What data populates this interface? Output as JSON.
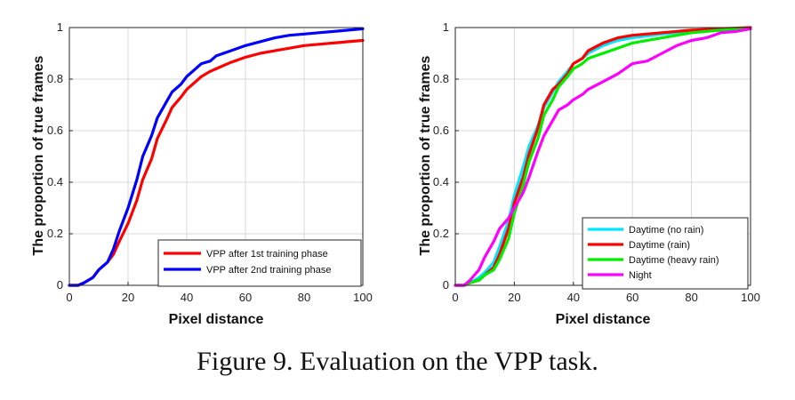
{
  "caption": "Figure 9. Evaluation on the VPP task.",
  "chart_data": [
    {
      "type": "line",
      "xlabel": "Pixel distance",
      "ylabel": "The proportion of true frames",
      "xlim": [
        0,
        100
      ],
      "ylim": [
        0,
        1
      ],
      "xticks": [
        0,
        20,
        40,
        60,
        80,
        100
      ],
      "yticks": [
        0,
        0.2,
        0.4,
        0.6,
        0.8,
        1
      ],
      "ytick_labels": [
        "0",
        "0.2",
        "0.4",
        "0.6",
        "0.8",
        "1"
      ],
      "grid": true,
      "legend_position": "bottom-right",
      "series": [
        {
          "name": "VPP after 1st training phase",
          "color": "#ff0000",
          "x": [
            0,
            3,
            5,
            8,
            10,
            13,
            15,
            17,
            20,
            23,
            25,
            28,
            30,
            33,
            35,
            38,
            40,
            43,
            45,
            48,
            50,
            55,
            60,
            65,
            70,
            75,
            80,
            85,
            90,
            95,
            100
          ],
          "y": [
            0,
            0,
            0.01,
            0.03,
            0.06,
            0.09,
            0.12,
            0.17,
            0.24,
            0.33,
            0.41,
            0.49,
            0.57,
            0.64,
            0.69,
            0.73,
            0.76,
            0.79,
            0.81,
            0.83,
            0.84,
            0.865,
            0.885,
            0.9,
            0.91,
            0.92,
            0.93,
            0.935,
            0.94,
            0.945,
            0.95
          ]
        },
        {
          "name": "VPP after 2nd training phase",
          "color": "#0000ff",
          "x": [
            0,
            3,
            5,
            8,
            10,
            13,
            15,
            17,
            20,
            23,
            25,
            28,
            30,
            33,
            35,
            38,
            40,
            43,
            45,
            48,
            50,
            55,
            60,
            65,
            70,
            75,
            80,
            85,
            90,
            95,
            100
          ],
          "y": [
            0,
            0,
            0.01,
            0.03,
            0.06,
            0.09,
            0.14,
            0.21,
            0.3,
            0.41,
            0.5,
            0.58,
            0.65,
            0.71,
            0.75,
            0.78,
            0.81,
            0.84,
            0.86,
            0.87,
            0.89,
            0.91,
            0.93,
            0.945,
            0.96,
            0.97,
            0.975,
            0.98,
            0.985,
            0.99,
            0.995
          ]
        }
      ]
    },
    {
      "type": "line",
      "xlabel": "Pixel distance",
      "ylabel": "The proportion of true frames",
      "xlim": [
        0,
        100
      ],
      "ylim": [
        0,
        1
      ],
      "xticks": [
        0,
        20,
        40,
        60,
        80,
        100
      ],
      "yticks": [
        0,
        0.2,
        0.4,
        0.6,
        0.8,
        1
      ],
      "ytick_labels": [
        "0",
        "0.2",
        "0.4",
        "0.6",
        "0.8",
        "1"
      ],
      "grid": true,
      "legend_position": "bottom-right",
      "series": [
        {
          "name": "Daytime (no rain)",
          "color": "#00e5ff",
          "x": [
            0,
            3,
            5,
            8,
            10,
            13,
            15,
            18,
            20,
            23,
            25,
            28,
            30,
            33,
            35,
            38,
            40,
            43,
            45,
            50,
            55,
            60,
            70,
            80,
            90,
            100
          ],
          "y": [
            0,
            0,
            0.01,
            0.03,
            0.05,
            0.09,
            0.15,
            0.25,
            0.35,
            0.46,
            0.54,
            0.62,
            0.69,
            0.75,
            0.79,
            0.83,
            0.86,
            0.88,
            0.9,
            0.93,
            0.95,
            0.96,
            0.975,
            0.985,
            0.99,
            1.0
          ]
        },
        {
          "name": "Daytime (rain)",
          "color": "#ff0000",
          "x": [
            0,
            3,
            5,
            8,
            10,
            13,
            15,
            18,
            20,
            23,
            25,
            28,
            30,
            33,
            35,
            38,
            40,
            43,
            45,
            50,
            55,
            60,
            70,
            80,
            90,
            100
          ],
          "y": [
            0,
            0,
            0.01,
            0.02,
            0.04,
            0.07,
            0.12,
            0.22,
            0.32,
            0.42,
            0.51,
            0.61,
            0.7,
            0.76,
            0.78,
            0.82,
            0.86,
            0.88,
            0.91,
            0.94,
            0.96,
            0.97,
            0.98,
            0.99,
            0.995,
            1.0
          ]
        },
        {
          "name": "Daytime (heavy rain)",
          "color": "#00ee00",
          "x": [
            0,
            3,
            5,
            8,
            10,
            13,
            15,
            18,
            20,
            23,
            25,
            28,
            30,
            33,
            35,
            38,
            40,
            43,
            45,
            50,
            55,
            60,
            70,
            80,
            90,
            100
          ],
          "y": [
            0,
            0,
            0.01,
            0.02,
            0.04,
            0.06,
            0.1,
            0.18,
            0.28,
            0.39,
            0.48,
            0.57,
            0.66,
            0.72,
            0.77,
            0.81,
            0.84,
            0.86,
            0.88,
            0.9,
            0.92,
            0.94,
            0.96,
            0.98,
            0.99,
            0.995
          ]
        },
        {
          "name": "Night",
          "color": "#ff00ff",
          "x": [
            0,
            3,
            5,
            8,
            10,
            13,
            15,
            18,
            20,
            23,
            25,
            28,
            30,
            33,
            35,
            38,
            40,
            43,
            45,
            50,
            55,
            60,
            65,
            70,
            75,
            80,
            85,
            90,
            95,
            100
          ],
          "y": [
            0,
            0,
            0.02,
            0.06,
            0.11,
            0.17,
            0.22,
            0.26,
            0.3,
            0.36,
            0.42,
            0.52,
            0.58,
            0.64,
            0.68,
            0.7,
            0.72,
            0.74,
            0.76,
            0.79,
            0.82,
            0.86,
            0.87,
            0.9,
            0.93,
            0.95,
            0.96,
            0.98,
            0.985,
            0.995
          ]
        }
      ]
    }
  ]
}
